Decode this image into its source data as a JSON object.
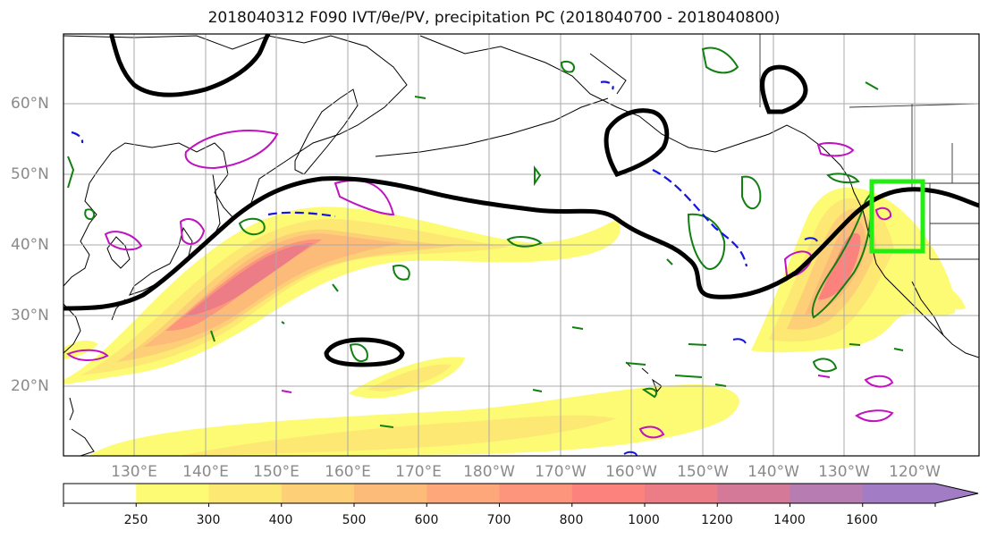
{
  "title": "2018040312 F090 IVT/θe/PV, precipitation PC (2018040700 - 2018040800)",
  "lat_labels": [
    "60°N",
    "50°N",
    "40°N",
    "30°N",
    "20°N"
  ],
  "lon_labels": [
    "130°E",
    "140°E",
    "150°E",
    "160°E",
    "170°E",
    "180°W",
    "170°W",
    "160°W",
    "150°W",
    "140°W",
    "130°W",
    "120°W"
  ],
  "colorbar": {
    "levels": [
      "250",
      "300",
      "400",
      "500",
      "600",
      "700",
      "800",
      "1000",
      "1200",
      "1400",
      "1600"
    ],
    "colors": [
      "#ffffff",
      "#fdfb74",
      "#fde873",
      "#fdd077",
      "#fdbb79",
      "#fda77b",
      "#fd947c",
      "#fb827d",
      "#ec7c86",
      "#d47a98",
      "#b77cb1",
      "#a27dc6"
    ]
  },
  "colors": {
    "ivt_contour": "#000000",
    "pv_positive": "#1515e0",
    "precip_pc": "#118011",
    "theta_e": "#c012c0",
    "target_box": "#22ee11",
    "grid": "#aaaaaa",
    "coast": "#000000"
  }
}
